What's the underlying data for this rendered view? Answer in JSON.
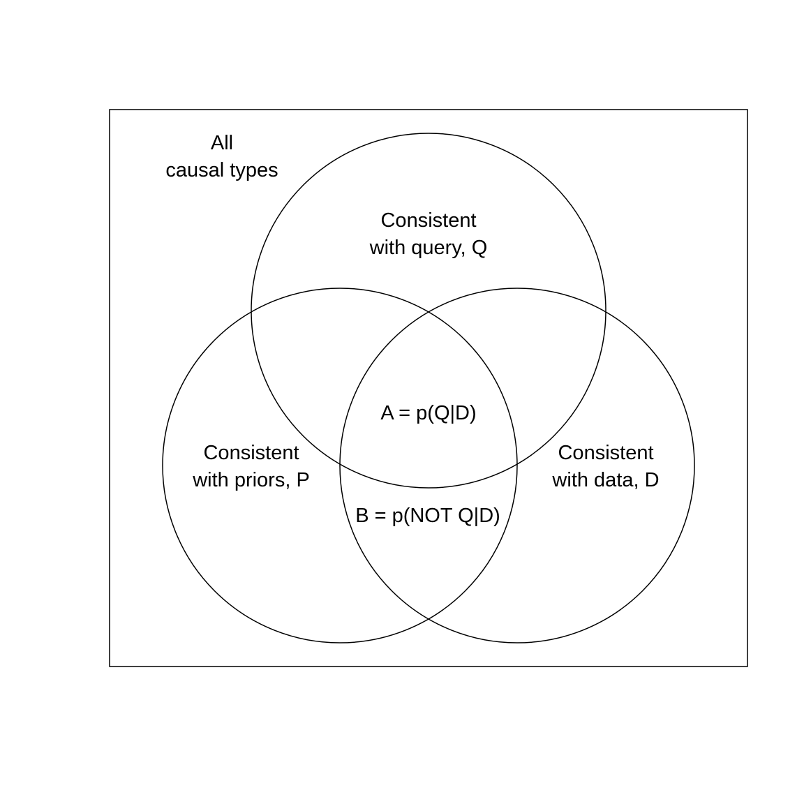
{
  "diagram": {
    "universe_label": [
      "All",
      "causal types"
    ],
    "sets": {
      "query": [
        "Consistent",
        "with query, Q"
      ],
      "priors": [
        "Consistent",
        "with priors, P"
      ],
      "data": [
        "Consistent",
        "with data, D"
      ]
    },
    "regions": {
      "a": "A = p(Q|D)",
      "b": "B = p(NOT Q|D)"
    },
    "stroke_color": "#000000",
    "text_color": "#000000",
    "background_color": "#ffffff"
  }
}
